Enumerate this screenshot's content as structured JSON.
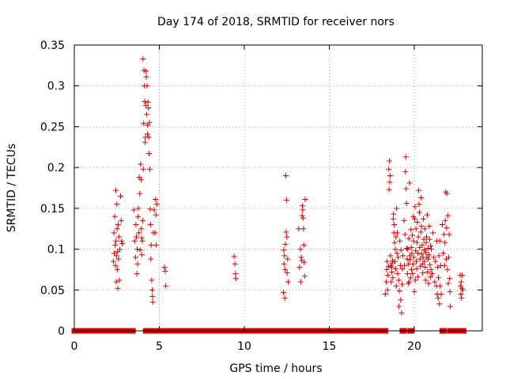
{
  "chart_data": {
    "type": "scatter",
    "title": "Day 174 of 2018, SRMTID for receiver nors",
    "xlabel": "GPS time / hours",
    "ylabel": "SRMTID / TECUs",
    "xlim": [
      0,
      24
    ],
    "ylim": [
      0,
      0.35
    ],
    "xticks": [
      0,
      5,
      10,
      15,
      20
    ],
    "xtick_labels": [
      "0",
      "5",
      "10",
      "15",
      "20"
    ],
    "yticks": [
      0,
      0.05,
      0.1,
      0.15,
      0.2,
      0.25,
      0.3,
      0.35
    ],
    "ytick_labels": [
      "0",
      "0.05",
      "0.1",
      "0.15",
      "0.2",
      "0.25",
      "0.3",
      "0.35"
    ],
    "grid": true,
    "marker": "+",
    "series": [
      {
        "name": "SRMTID",
        "color": "#dd0000",
        "zero_segments": [
          [
            0,
            2.3
          ],
          [
            2.6,
            2.7
          ],
          [
            2.95,
            3.05
          ],
          [
            3.2,
            3.45
          ],
          [
            4.2,
            4.25
          ],
          [
            4.55,
            4.75
          ],
          [
            4.85,
            12.0
          ],
          [
            12.2,
            12.6
          ],
          [
            12.85,
            13.3
          ],
          [
            13.5,
            18.3
          ],
          [
            19.3,
            19.4
          ],
          [
            19.75,
            19.85
          ],
          [
            21.65,
            21.75
          ],
          [
            22.1,
            22.6
          ],
          [
            22.8,
            22.9
          ]
        ],
        "points": [
          [
            2.3,
            0.085
          ],
          [
            2.33,
            0.12
          ],
          [
            2.35,
            0.095
          ],
          [
            2.38,
            0.14
          ],
          [
            2.4,
            0.105
          ],
          [
            2.42,
            0.08
          ],
          [
            2.44,
            0.172
          ],
          [
            2.45,
            0.11
          ],
          [
            2.47,
            0.06
          ],
          [
            2.48,
            0.092
          ],
          [
            2.5,
            0.155
          ],
          [
            2.52,
            0.125
          ],
          [
            2.53,
            0.075
          ],
          [
            2.55,
            0.097
          ],
          [
            2.56,
            0.052
          ],
          [
            2.58,
            0.13
          ],
          [
            2.6,
            0.088
          ],
          [
            2.62,
            0.115
          ],
          [
            2.65,
            0.062
          ],
          [
            2.68,
            0.1
          ],
          [
            2.72,
            0.165
          ],
          [
            2.75,
            0.135
          ],
          [
            2.78,
            0.11
          ],
          [
            2.82,
            0.107
          ],
          [
            3.5,
            0.148
          ],
          [
            3.55,
            0.11
          ],
          [
            3.6,
            0.09
          ],
          [
            3.62,
            0.13
          ],
          [
            3.65,
            0.115
          ],
          [
            3.68,
            0.07
          ],
          [
            3.7,
            0.1
          ],
          [
            3.72,
            0.082
          ],
          [
            3.75,
            0.14
          ],
          [
            3.77,
            0.15
          ],
          [
            3.8,
            0.12
          ],
          [
            3.82,
            0.188
          ],
          [
            3.85,
            0.168
          ],
          [
            3.87,
            0.099
          ],
          [
            3.9,
            0.204
          ],
          [
            3.92,
            0.185
          ],
          [
            3.94,
            0.125
          ],
          [
            3.96,
            0.114
          ],
          [
            3.98,
            0.093
          ],
          [
            4.0,
            0.11
          ],
          [
            4.02,
            0.135
          ],
          [
            4.04,
            0.333
          ],
          [
            4.06,
            0.198
          ],
          [
            4.08,
            0.254
          ],
          [
            4.1,
            0.319
          ],
          [
            4.12,
            0.3
          ],
          [
            4.14,
            0.281
          ],
          [
            4.16,
            0.231
          ],
          [
            4.18,
            0.237
          ],
          [
            4.2,
            0.276
          ],
          [
            4.22,
            0.318
          ],
          [
            4.24,
            0.311
          ],
          [
            4.26,
            0.265
          ],
          [
            4.28,
            0.3
          ],
          [
            4.3,
            0.241
          ],
          [
            4.32,
            0.252
          ],
          [
            4.34,
            0.28
          ],
          [
            4.36,
            0.273
          ],
          [
            4.38,
            0.237
          ],
          [
            4.4,
            0.217
          ],
          [
            4.42,
            0.255
          ],
          [
            4.44,
            0.198
          ],
          [
            4.46,
            0.149
          ],
          [
            4.48,
            0.13
          ],
          [
            4.5,
            0.088
          ],
          [
            4.52,
            0.105
          ],
          [
            4.55,
            0.062
          ],
          [
            4.58,
            0.05
          ],
          [
            4.6,
            0.042
          ],
          [
            4.62,
            0.035
          ],
          [
            4.65,
            0.12
          ],
          [
            4.7,
            0.148
          ],
          [
            4.75,
            0.12
          ],
          [
            4.78,
            0.161
          ],
          [
            4.8,
            0.142
          ],
          [
            4.82,
            0.105
          ],
          [
            4.85,
            0.155
          ],
          [
            5.3,
            0.078
          ],
          [
            5.35,
            0.073
          ],
          [
            5.38,
            0.055
          ],
          [
            9.4,
            0.091
          ],
          [
            9.45,
            0.082
          ],
          [
            9.48,
            0.07
          ],
          [
            9.5,
            0.064
          ],
          [
            12.3,
            0.047
          ],
          [
            12.32,
            0.099
          ],
          [
            12.34,
            0.082
          ],
          [
            12.36,
            0.092
          ],
          [
            12.38,
            0.04
          ],
          [
            12.4,
            0.075
          ],
          [
            12.42,
            0.106
          ],
          [
            12.44,
            0.19
          ],
          [
            12.46,
            0.121
          ],
          [
            12.48,
            0.16
          ],
          [
            12.5,
            0.115
          ],
          [
            12.52,
            0.071
          ],
          [
            12.55,
            0.088
          ],
          [
            12.58,
            0.06
          ],
          [
            13.2,
            0.125
          ],
          [
            13.25,
            0.078
          ],
          [
            13.3,
            0.1
          ],
          [
            13.32,
            0.06
          ],
          [
            13.35,
            0.09
          ],
          [
            13.38,
            0.086
          ],
          [
            13.4,
            0.141
          ],
          [
            13.42,
            0.153
          ],
          [
            13.44,
            0.148
          ],
          [
            13.46,
            0.138
          ],
          [
            13.48,
            0.125
          ],
          [
            13.5,
            0.105
          ],
          [
            13.52,
            0.084
          ],
          [
            13.55,
            0.067
          ],
          [
            13.58,
            0.161
          ],
          [
            18.3,
            0.045
          ],
          [
            18.35,
            0.06
          ],
          [
            18.38,
            0.075
          ],
          [
            18.4,
            0.085
          ],
          [
            18.42,
            0.05
          ],
          [
            18.45,
            0.068
          ],
          [
            18.48,
            0.079
          ],
          [
            18.5,
            0.198
          ],
          [
            18.52,
            0.173
          ],
          [
            18.54,
            0.208
          ],
          [
            18.56,
            0.182
          ],
          [
            18.58,
            0.19
          ],
          [
            18.6,
            0.092
          ],
          [
            18.62,
            0.08
          ],
          [
            18.64,
            0.06
          ],
          [
            18.66,
            0.078
          ],
          [
            18.68,
            0.072
          ],
          [
            18.7,
            0.083
          ],
          [
            18.72,
            0.086
          ],
          [
            18.74,
            0.065
          ],
          [
            18.76,
            0.137
          ],
          [
            18.78,
            0.143
          ],
          [
            18.8,
            0.12
          ],
          [
            18.82,
            0.13
          ],
          [
            18.84,
            0.108
          ],
          [
            18.86,
            0.085
          ],
          [
            18.88,
            0.1
          ],
          [
            18.9,
            0.076
          ],
          [
            18.92,
            0.115
          ],
          [
            18.94,
            0.055
          ],
          [
            18.96,
            0.15
          ],
          [
            18.98,
            0.095
          ],
          [
            19.0,
            0.12
          ],
          [
            19.02,
            0.07
          ],
          [
            19.05,
            0.09
          ],
          [
            19.08,
            0.062
          ],
          [
            19.1,
            0.03
          ],
          [
            19.12,
            0.049
          ],
          [
            19.15,
            0.11
          ],
          [
            19.18,
            0.08
          ],
          [
            19.2,
            0.038
          ],
          [
            19.22,
            0.099
          ],
          [
            19.25,
            0.022
          ],
          [
            19.28,
            0.057
          ],
          [
            19.3,
            0.076
          ],
          [
            19.33,
            0.092
          ],
          [
            19.4,
            0.135
          ],
          [
            19.42,
            0.08
          ],
          [
            19.45,
            0.118
          ],
          [
            19.48,
            0.195
          ],
          [
            19.5,
            0.213
          ],
          [
            19.52,
            0.174
          ],
          [
            19.54,
            0.156
          ],
          [
            19.56,
            0.101
          ],
          [
            19.58,
            0.088
          ],
          [
            19.6,
            0.07
          ],
          [
            19.62,
            0.1
          ],
          [
            19.64,
            0.058
          ],
          [
            19.66,
            0.082
          ],
          [
            19.68,
            0.113
          ],
          [
            19.7,
            0.06
          ],
          [
            19.72,
            0.181
          ],
          [
            19.74,
            0.092
          ],
          [
            19.76,
            0.087
          ],
          [
            19.78,
            0.065
          ],
          [
            19.8,
            0.124
          ],
          [
            19.82,
            0.102
          ],
          [
            19.84,
            0.075
          ],
          [
            19.86,
            0.095
          ],
          [
            19.88,
            0.117
          ],
          [
            19.9,
            0.07
          ],
          [
            19.92,
            0.082
          ],
          [
            19.94,
            0.14
          ],
          [
            19.96,
            0.11
          ],
          [
            19.98,
            0.09
          ],
          [
            20.0,
            0.048
          ],
          [
            20.02,
            0.137
          ],
          [
            20.04,
            0.152
          ],
          [
            20.06,
            0.062
          ],
          [
            20.08,
            0.098
          ],
          [
            20.1,
            0.125
          ],
          [
            20.12,
            0.085
          ],
          [
            20.14,
            0.076
          ],
          [
            20.16,
            0.108
          ],
          [
            20.18,
            0.133
          ],
          [
            20.2,
            0.066
          ],
          [
            20.22,
            0.095
          ],
          [
            20.24,
            0.115
          ],
          [
            20.26,
            0.172
          ],
          [
            20.28,
            0.155
          ],
          [
            20.3,
            0.145
          ],
          [
            20.32,
            0.102
          ],
          [
            20.34,
            0.088
          ],
          [
            20.36,
            0.079
          ],
          [
            20.38,
            0.121
          ],
          [
            20.4,
            0.163
          ],
          [
            20.42,
            0.128
          ],
          [
            20.44,
            0.094
          ],
          [
            20.46,
            0.105
          ],
          [
            20.48,
            0.082
          ],
          [
            20.5,
            0.071
          ],
          [
            20.52,
            0.09
          ],
          [
            20.54,
            0.137
          ],
          [
            20.56,
            0.112
          ],
          [
            20.58,
            0.099
          ],
          [
            20.6,
            0.085
          ],
          [
            20.62,
            0.125
          ],
          [
            20.64,
            0.078
          ],
          [
            20.66,
            0.062
          ],
          [
            20.68,
            0.096
          ],
          [
            20.7,
            0.108
          ],
          [
            20.72,
            0.115
          ],
          [
            20.74,
            0.09
          ],
          [
            20.76,
            0.142
          ],
          [
            20.78,
            0.072
          ],
          [
            20.8,
            0.101
          ],
          [
            20.82,
            0.088
          ],
          [
            20.84,
            0.058
          ],
          [
            20.86,
            0.093
          ],
          [
            20.88,
            0.128
          ],
          [
            20.9,
            0.112
          ],
          [
            20.92,
            0.081
          ],
          [
            20.94,
            0.066
          ],
          [
            20.96,
            0.104
          ],
          [
            20.98,
            0.075
          ],
          [
            21.0,
            0.1
          ],
          [
            21.05,
            0.07
          ],
          [
            21.1,
            0.12
          ],
          [
            21.15,
            0.09
          ],
          [
            21.2,
            0.06
          ],
          [
            21.25,
            0.085
          ],
          [
            21.3,
            0.055
          ],
          [
            21.32,
            0.11
          ],
          [
            21.35,
            0.045
          ],
          [
            21.38,
            0.078
          ],
          [
            21.4,
            0.04
          ],
          [
            21.42,
            0.065
          ],
          [
            21.45,
            0.092
          ],
          [
            21.48,
            0.033
          ],
          [
            21.5,
            0.11
          ],
          [
            21.52,
            0.055
          ],
          [
            21.55,
            0.08
          ],
          [
            21.58,
            0.045
          ],
          [
            21.65,
            0.13
          ],
          [
            21.7,
            0.095
          ],
          [
            21.75,
            0.118
          ],
          [
            21.78,
            0.08
          ],
          [
            21.8,
            0.108
          ],
          [
            21.82,
            0.135
          ],
          [
            21.85,
            0.17
          ],
          [
            21.88,
            0.088
          ],
          [
            21.9,
            0.126
          ],
          [
            21.92,
            0.168
          ],
          [
            21.95,
            0.075
          ],
          [
            21.98,
            0.141
          ],
          [
            22.0,
            0.058
          ],
          [
            22.02,
            0.09
          ],
          [
            22.05,
            0.118
          ],
          [
            22.08,
            0.064
          ],
          [
            22.1,
            0.048
          ],
          [
            22.12,
            0.03
          ],
          [
            22.7,
            0.068
          ],
          [
            22.72,
            0.055
          ],
          [
            22.74,
            0.045
          ],
          [
            22.76,
            0.06
          ],
          [
            22.78,
            0.04
          ],
          [
            22.8,
            0.052
          ],
          [
            22.82,
            0.068
          ],
          [
            22.85,
            0.05
          ]
        ]
      }
    ]
  }
}
